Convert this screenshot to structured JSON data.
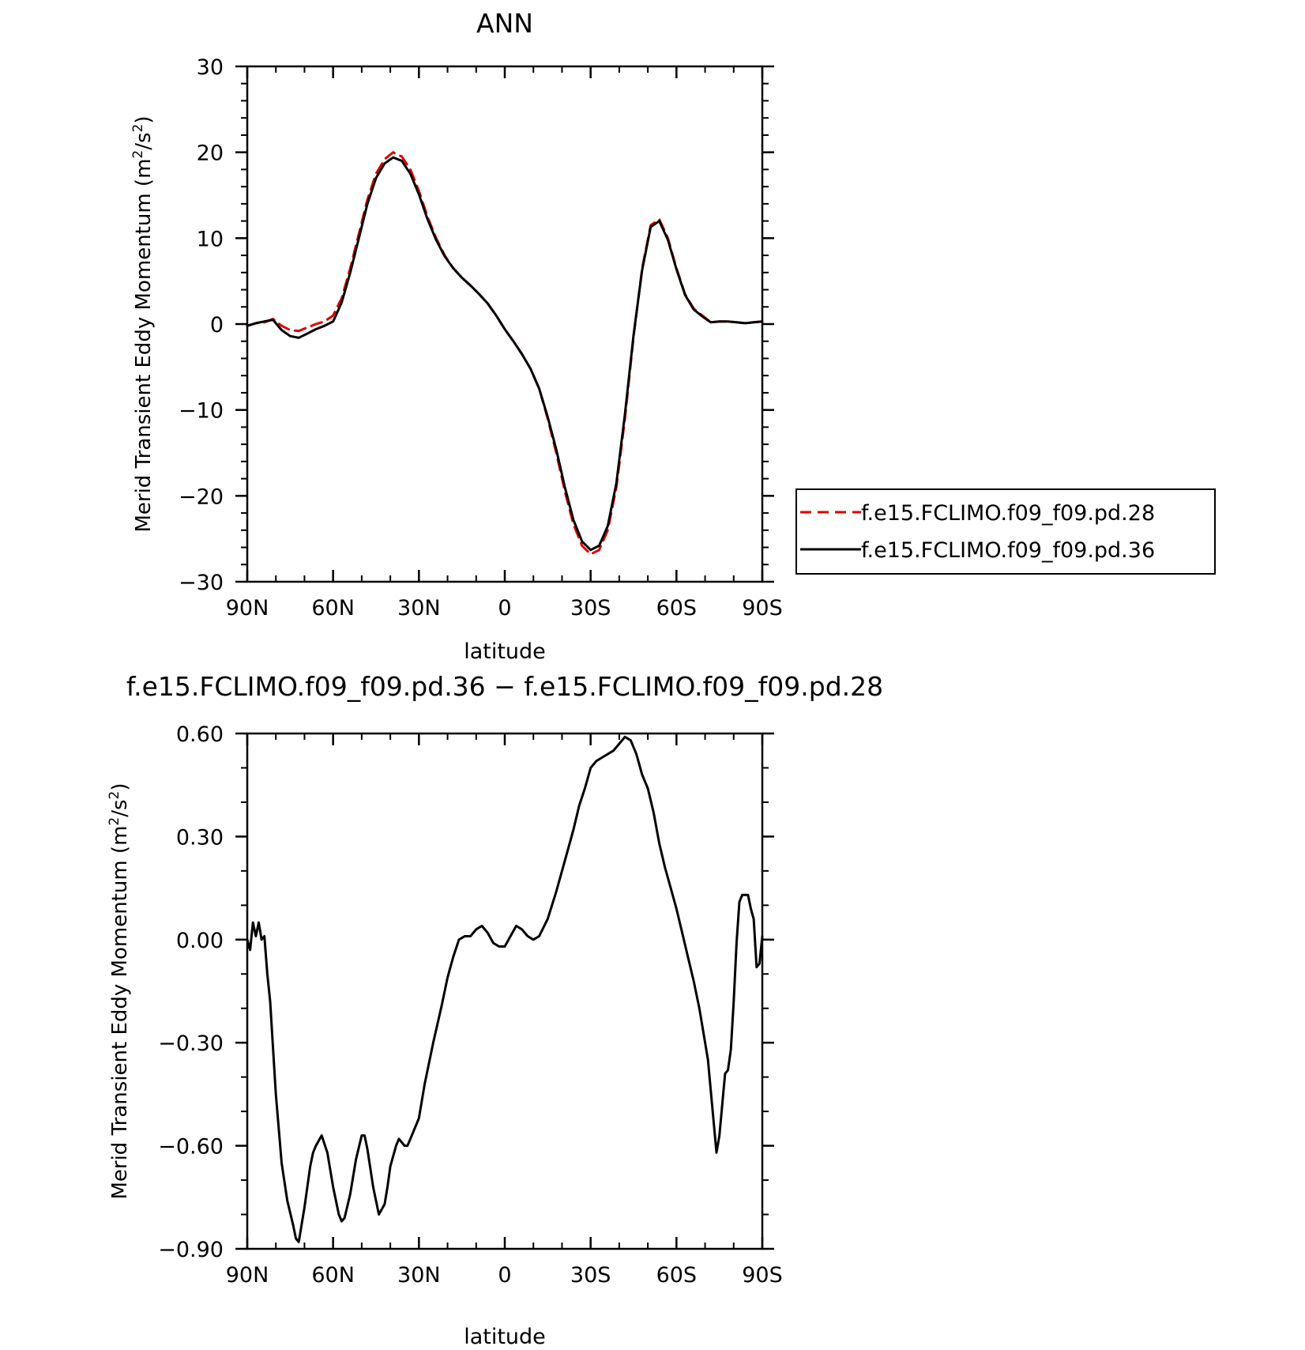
{
  "chart_data": [
    {
      "type": "line",
      "title": "ANN",
      "xlabel": "latitude",
      "ylabel": "Merid Transient Eddy Momentum (m²/s²)",
      "ylabel_main": "Merid Transient Eddy Momentum (m",
      "ylabel_sup1": "2",
      "ylabel_mid": "/s",
      "ylabel_sup2": "2",
      "ylabel_end": ")",
      "x_direction": "north-to-south",
      "xlim": [
        90,
        -90
      ],
      "ylim": [
        -30,
        30
      ],
      "x_ticks": [
        90,
        60,
        30,
        0,
        -30,
        -60,
        -90
      ],
      "x_tick_labels": [
        "90N",
        "60N",
        "30N",
        "0",
        "30S",
        "60S",
        "90S"
      ],
      "y_ticks": [
        -30,
        -20,
        -10,
        0,
        10,
        20,
        30
      ],
      "y_tick_labels": [
        "−30",
        "−20",
        "−10",
        "0",
        "10",
        "20",
        "30"
      ],
      "legend_position": "right",
      "series": [
        {
          "name": "f.e15.FCLIMO.f09_f09.pd.28",
          "color": "#e00000",
          "style": "dashed",
          "x": [
            90,
            87,
            84,
            81,
            78,
            75,
            72,
            69,
            66,
            63,
            60,
            57,
            54,
            51,
            48,
            45,
            42,
            39,
            36,
            33,
            30,
            27,
            24,
            21,
            18,
            15,
            12,
            9,
            6,
            3,
            0,
            -3,
            -6,
            -9,
            -12,
            -15,
            -18,
            -21,
            -24,
            -27,
            -30,
            -33,
            -36,
            -39,
            -42,
            -45,
            -48,
            -51,
            -54,
            -57,
            -60,
            -63,
            -66,
            -69,
            -72,
            -75,
            -78,
            -81,
            -84,
            -87,
            -90
          ],
          "y": [
            -0.2,
            0.1,
            0.2,
            0.6,
            -0.2,
            -0.7,
            -0.8,
            -0.4,
            0,
            0.3,
            1.0,
            3.0,
            6.5,
            10.5,
            14.5,
            17.5,
            19.2,
            20.0,
            19.5,
            18.0,
            15.5,
            12.5,
            10.0,
            8.0,
            6.5,
            5.4,
            4.5,
            3.5,
            2.4,
            1.0,
            -0.6,
            -2.0,
            -3.5,
            -5.2,
            -7.5,
            -11.0,
            -15.0,
            -19.5,
            -23.3,
            -25.8,
            -26.8,
            -26.3,
            -24.0,
            -19.0,
            -11.0,
            -1.5,
            6.5,
            11.5,
            12.2,
            10.0,
            6.5,
            3.5,
            1.8,
            1.0,
            0.2,
            0.3,
            0.3,
            0.2,
            0.1,
            0.2,
            0.3
          ]
        },
        {
          "name": "f.e15.FCLIMO.f09_f09.pd.36",
          "color": "#000000",
          "style": "solid",
          "x": [
            90,
            87,
            84,
            81,
            78,
            75,
            72,
            69,
            66,
            63,
            60,
            57,
            54,
            51,
            48,
            45,
            42,
            39,
            36,
            33,
            30,
            27,
            24,
            21,
            18,
            15,
            12,
            9,
            6,
            3,
            0,
            -3,
            -6,
            -9,
            -12,
            -15,
            -18,
            -21,
            -24,
            -27,
            -30,
            -33,
            -36,
            -39,
            -42,
            -45,
            -48,
            -51,
            -54,
            -57,
            -60,
            -63,
            -66,
            -69,
            -72,
            -75,
            -78,
            -81,
            -84,
            -87,
            -90
          ],
          "y": [
            -0.2,
            0.1,
            0.3,
            0.5,
            -0.7,
            -1.4,
            -1.6,
            -1.1,
            -0.6,
            -0.2,
            0.3,
            2.5,
            6.0,
            10.0,
            14.0,
            17.0,
            18.7,
            19.4,
            19.0,
            17.5,
            15.1,
            12.2,
            9.8,
            7.9,
            6.5,
            5.4,
            4.5,
            3.5,
            2.4,
            1.0,
            -0.6,
            -2.0,
            -3.5,
            -5.2,
            -7.5,
            -10.8,
            -14.6,
            -19.0,
            -22.8,
            -25.3,
            -26.3,
            -25.8,
            -23.5,
            -18.5,
            -10.5,
            -1.3,
            6.3,
            11.3,
            12.0,
            9.8,
            6.4,
            3.4,
            1.7,
            0.9,
            0.2,
            0.3,
            0.3,
            0.2,
            0.1,
            0.2,
            0.3
          ]
        }
      ]
    },
    {
      "type": "line",
      "title": "f.e15.FCLIMO.f09_f09.pd.36 − f.e15.FCLIMO.f09_f09.pd.28",
      "xlabel": "latitude",
      "ylabel": "Merid Transient Eddy Momentum (m²/s²)",
      "ylabel_main": "Merid Transient Eddy Momentum (m",
      "ylabel_sup1": "2",
      "ylabel_mid": "/s",
      "ylabel_sup2": "2",
      "ylabel_end": ")",
      "x_direction": "north-to-south",
      "xlim": [
        90,
        -90
      ],
      "ylim": [
        -0.9,
        0.6
      ],
      "x_ticks": [
        90,
        60,
        30,
        0,
        -30,
        -60,
        -90
      ],
      "x_tick_labels": [
        "90N",
        "60N",
        "30N",
        "0",
        "30S",
        "60S",
        "90S"
      ],
      "y_ticks": [
        -0.9,
        -0.6,
        -0.3,
        0,
        0.3,
        0.6
      ],
      "y_tick_labels": [
        "−0.90",
        "−0.60",
        "−0.30",
        "0.00",
        "0.30",
        "0.60"
      ],
      "series": [
        {
          "color": "#000000",
          "style": "solid",
          "x": [
            90,
            89,
            88,
            87,
            86,
            85,
            84,
            83,
            82,
            80,
            78,
            76,
            74,
            73,
            72,
            70,
            68,
            67,
            66,
            64,
            62,
            60,
            58,
            57,
            56,
            54,
            52,
            50,
            49,
            48,
            46,
            44,
            42,
            41,
            40,
            38,
            37,
            36,
            35,
            34,
            33,
            30,
            28,
            25,
            22,
            20,
            18,
            16,
            14,
            12,
            10,
            8,
            6,
            4,
            2,
            0,
            -2,
            -4,
            -6,
            -8,
            -10,
            -12,
            -15,
            -18,
            -21,
            -24,
            -26,
            -28,
            -30,
            -32,
            -34,
            -36,
            -38,
            -40,
            -42,
            -44,
            -46,
            -48,
            -50,
            -52,
            -54,
            -56,
            -58,
            -60,
            -62,
            -64,
            -66,
            -68,
            -70,
            -71,
            -72,
            -73,
            -74,
            -75,
            -76,
            -77,
            -78,
            -79,
            -80,
            -81,
            -82,
            -83,
            -84,
            -85,
            -86,
            -87,
            -88,
            -89,
            -90
          ],
          "y": [
            0.0,
            -0.03,
            0.05,
            0.01,
            0.05,
            0.0,
            0.01,
            -0.1,
            -0.18,
            -0.45,
            -0.65,
            -0.76,
            -0.83,
            -0.87,
            -0.88,
            -0.78,
            -0.66,
            -0.62,
            -0.6,
            -0.57,
            -0.62,
            -0.72,
            -0.8,
            -0.82,
            -0.81,
            -0.74,
            -0.64,
            -0.57,
            -0.57,
            -0.61,
            -0.72,
            -0.8,
            -0.77,
            -0.72,
            -0.66,
            -0.6,
            -0.58,
            -0.59,
            -0.6,
            -0.6,
            -0.58,
            -0.52,
            -0.42,
            -0.3,
            -0.19,
            -0.11,
            -0.05,
            0.0,
            0.01,
            0.01,
            0.03,
            0.04,
            0.02,
            -0.01,
            -0.02,
            -0.02,
            0.01,
            0.04,
            0.03,
            0.01,
            0.0,
            0.01,
            0.06,
            0.14,
            0.23,
            0.32,
            0.39,
            0.44,
            0.5,
            0.52,
            0.53,
            0.54,
            0.55,
            0.57,
            0.59,
            0.58,
            0.54,
            0.48,
            0.44,
            0.37,
            0.28,
            0.21,
            0.15,
            0.09,
            0.02,
            -0.05,
            -0.12,
            -0.2,
            -0.3,
            -0.35,
            -0.44,
            -0.53,
            -0.62,
            -0.57,
            -0.48,
            -0.39,
            -0.38,
            -0.32,
            -0.18,
            -0.01,
            0.11,
            0.13,
            0.13,
            0.13,
            0.09,
            0.06,
            -0.08,
            -0.07,
            0.01
          ]
        }
      ]
    }
  ]
}
